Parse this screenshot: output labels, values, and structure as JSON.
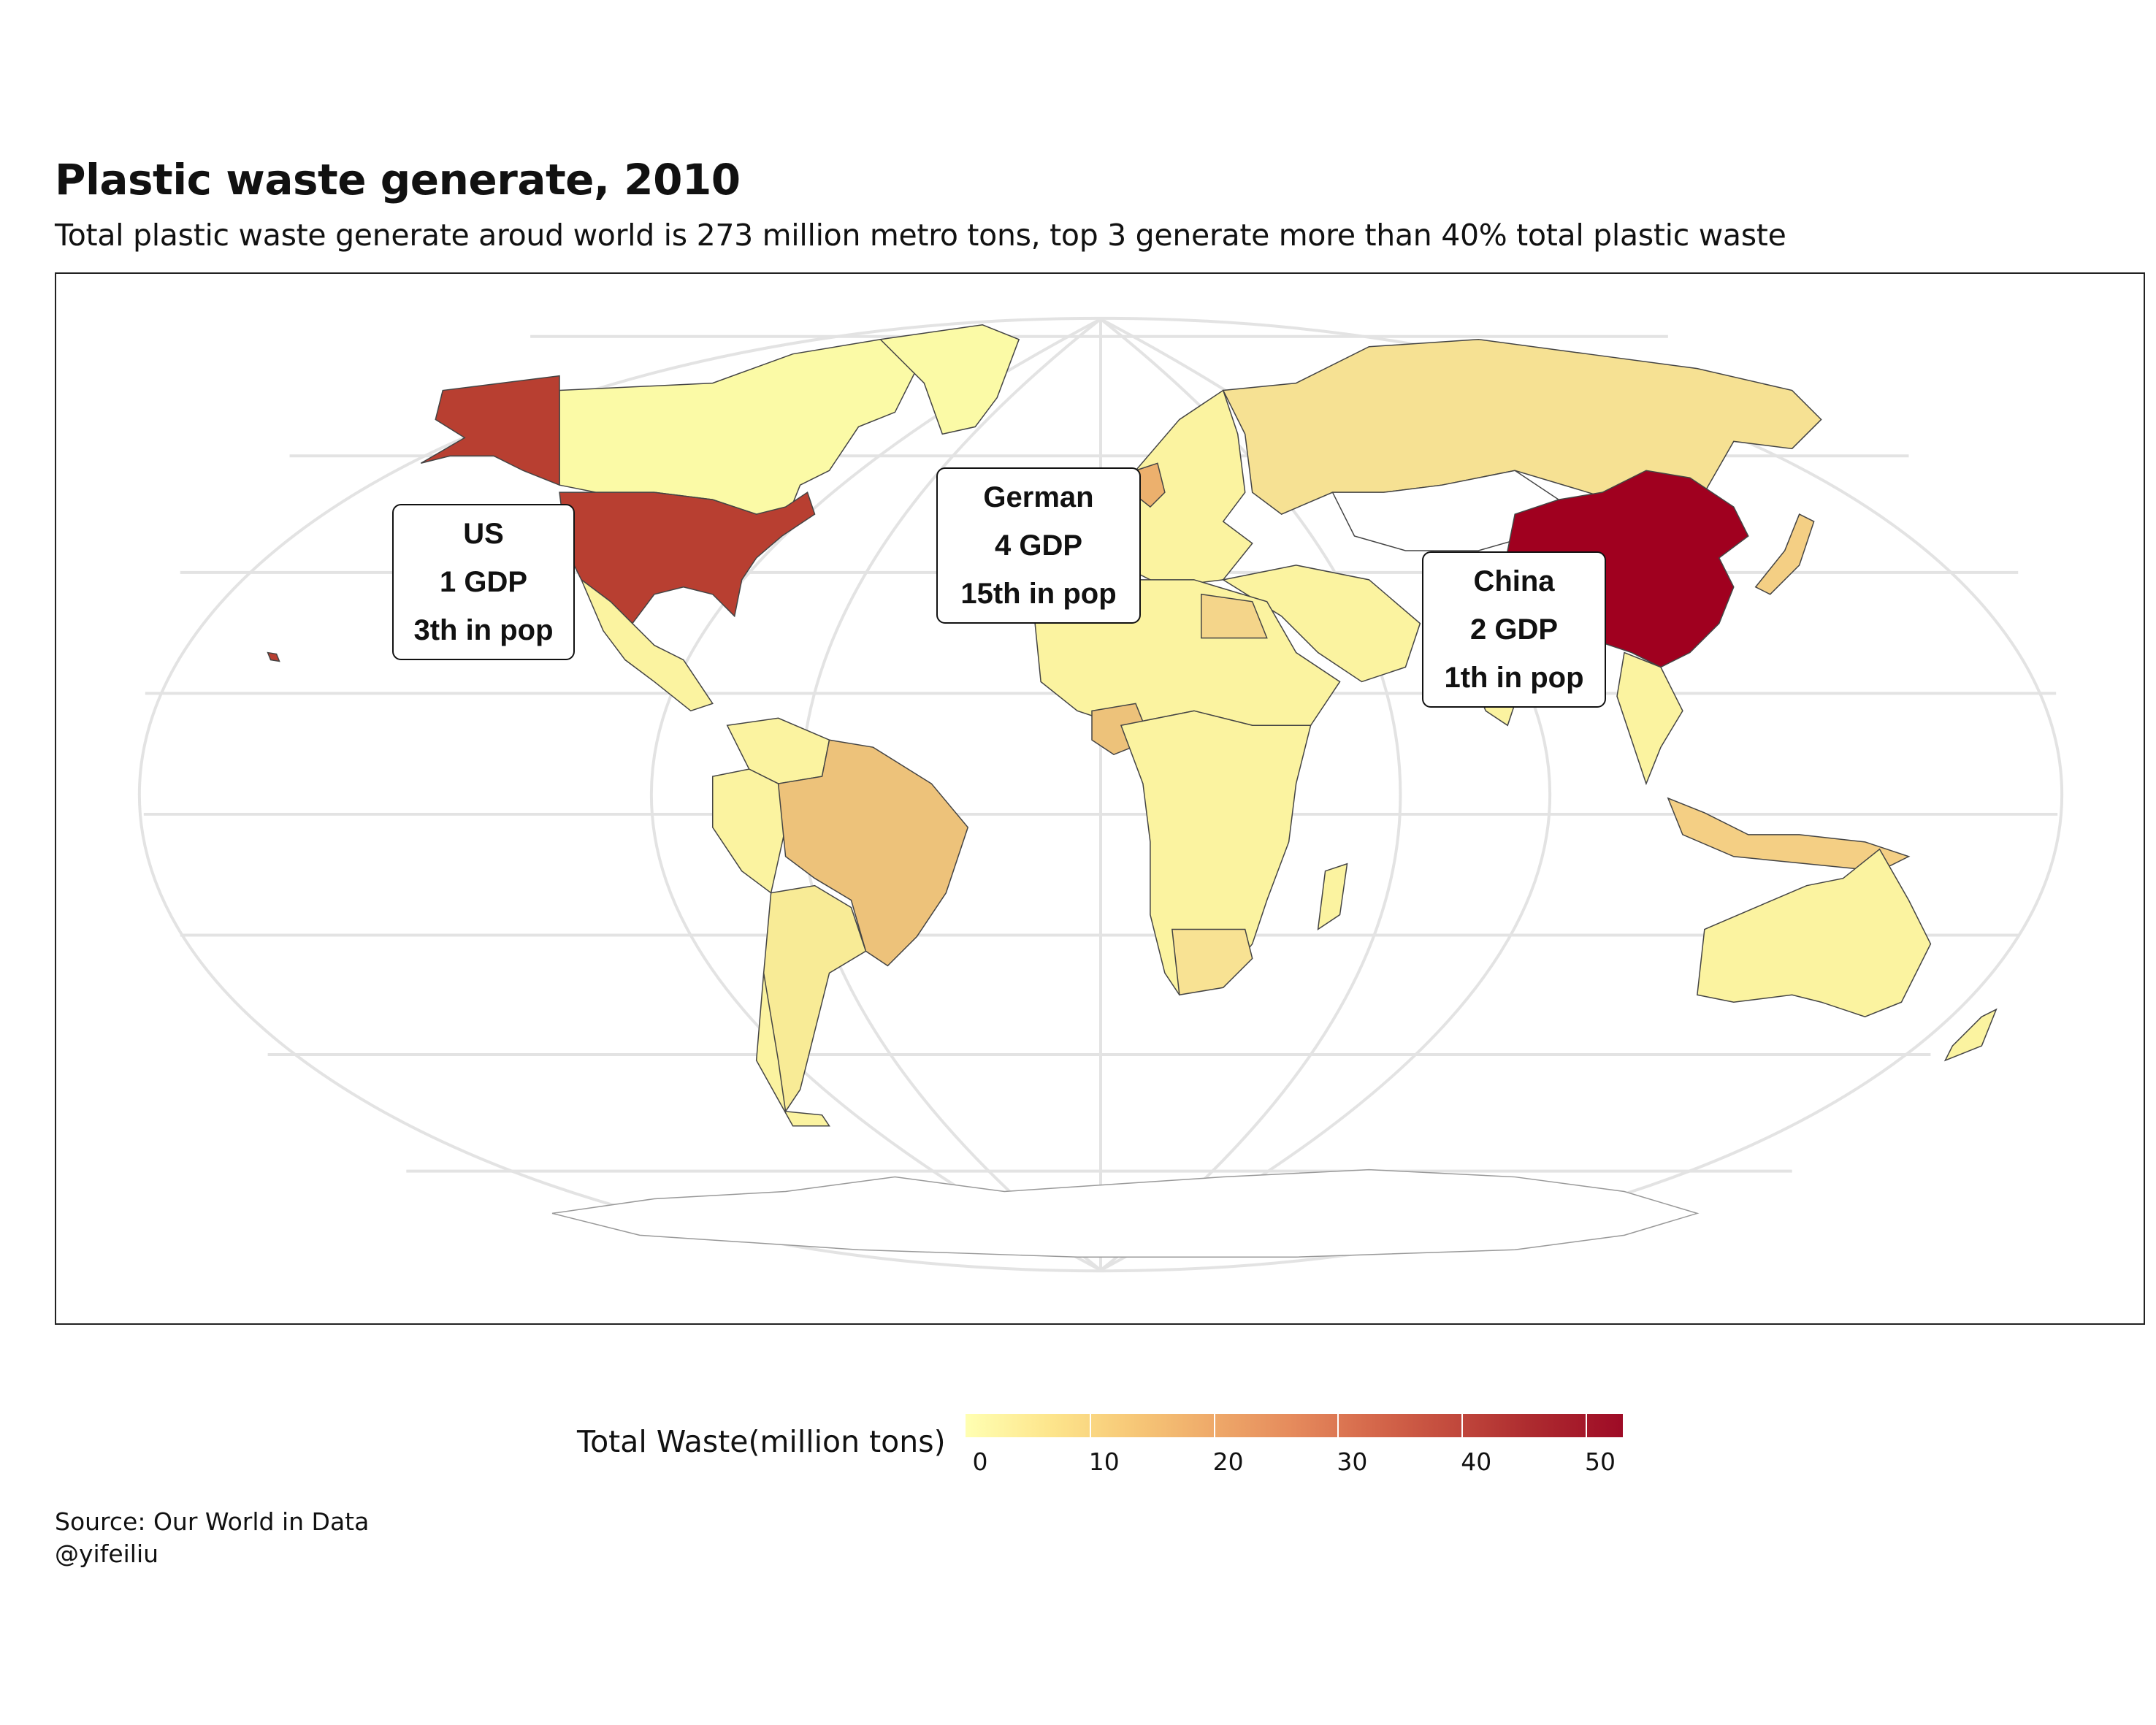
{
  "title": "Plastic waste generate, 2010",
  "subtitle": "Total plastic waste generate aroud world is 273 million metro tons, top 3 generate more than 40% total plastic waste",
  "callouts": {
    "us": {
      "line1": "US",
      "line2": "1 GDP",
      "line3": "3th in pop"
    },
    "german": {
      "line1": "German",
      "line2": "4 GDP",
      "line3": "15th in pop"
    },
    "china": {
      "line1": "China",
      "line2": "2 GDP",
      "line3": "1th in pop"
    }
  },
  "legend": {
    "title": "Total Waste(million tons)",
    "ticks": [
      "0",
      "10",
      "20",
      "30",
      "40",
      "50"
    ],
    "min": 0,
    "max": 53,
    "colors": [
      "#ffffb2",
      "#fde58c",
      "#efab6a",
      "#d5684b",
      "#ad2b2f",
      "#9e0b26"
    ]
  },
  "source": {
    "line1": "Source: Our World in Data",
    "line2": "@yifeiliu"
  }
}
